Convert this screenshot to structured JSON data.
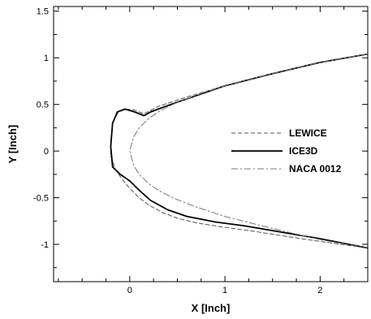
{
  "chart_data": {
    "type": "line",
    "title": "",
    "xlabel": "X [Inch]",
    "ylabel": "Y [Inch]",
    "xlim": [
      -0.8,
      2.5
    ],
    "ylim": [
      -1.4,
      1.55
    ],
    "x_ticks": [
      0,
      1,
      2
    ],
    "y_ticks": [
      -1,
      -0.5,
      0,
      0.5,
      1,
      1.5
    ],
    "x_tick_labels": [
      "0",
      "1",
      "2"
    ],
    "y_tick_labels": [
      "-1",
      "-0.5",
      "0",
      "0.5",
      "1",
      "1.5"
    ],
    "grid": false,
    "legend_position": "right",
    "series": [
      {
        "name": "LEWICE",
        "style": "dashed",
        "color": "#555555",
        "x": [
          2.5,
          2.0,
          1.5,
          1.0,
          0.6,
          0.3,
          0.15,
          0.05,
          -0.05,
          -0.12,
          -0.18,
          -0.2,
          -0.2,
          -0.15,
          -0.08,
          0.0,
          0.1,
          0.2,
          0.35,
          0.5,
          0.7,
          0.95,
          1.3,
          1.8,
          2.5
        ],
        "y": [
          1.04,
          0.95,
          0.83,
          0.7,
          0.58,
          0.48,
          0.4,
          0.44,
          0.45,
          0.42,
          0.3,
          0.1,
          -0.05,
          -0.2,
          -0.3,
          -0.4,
          -0.5,
          -0.58,
          -0.66,
          -0.72,
          -0.77,
          -0.81,
          -0.86,
          -0.94,
          -1.04
        ]
      },
      {
        "name": "ICE3D",
        "style": "solid",
        "color": "#000000",
        "x": [
          2.5,
          2.0,
          1.5,
          1.0,
          0.6,
          0.35,
          0.22,
          0.15,
          0.05,
          -0.05,
          -0.13,
          -0.18,
          -0.2,
          -0.18,
          -0.1,
          0.0,
          0.1,
          0.22,
          0.4,
          0.6,
          0.9,
          1.2,
          1.6,
          2.0,
          2.5
        ],
        "y": [
          1.04,
          0.95,
          0.83,
          0.7,
          0.56,
          0.47,
          0.42,
          0.38,
          0.42,
          0.45,
          0.42,
          0.3,
          0.05,
          -0.17,
          -0.25,
          -0.32,
          -0.42,
          -0.53,
          -0.63,
          -0.7,
          -0.76,
          -0.8,
          -0.87,
          -0.94,
          -1.04
        ]
      },
      {
        "name": "NACA 0012",
        "style": "dashdot",
        "color": "#777777",
        "x": [
          2.5,
          2.0,
          1.5,
          1.0,
          0.7,
          0.45,
          0.3,
          0.2,
          0.1,
          0.04,
          0.0,
          0.04,
          0.1,
          0.2,
          0.3,
          0.45,
          0.7,
          1.0,
          1.5,
          2.0,
          2.5
        ],
        "y": [
          1.04,
          0.95,
          0.83,
          0.7,
          0.6,
          0.5,
          0.42,
          0.35,
          0.25,
          0.15,
          0.0,
          -0.15,
          -0.25,
          -0.35,
          -0.42,
          -0.5,
          -0.6,
          -0.7,
          -0.83,
          -0.95,
          -1.04
        ]
      }
    ]
  }
}
